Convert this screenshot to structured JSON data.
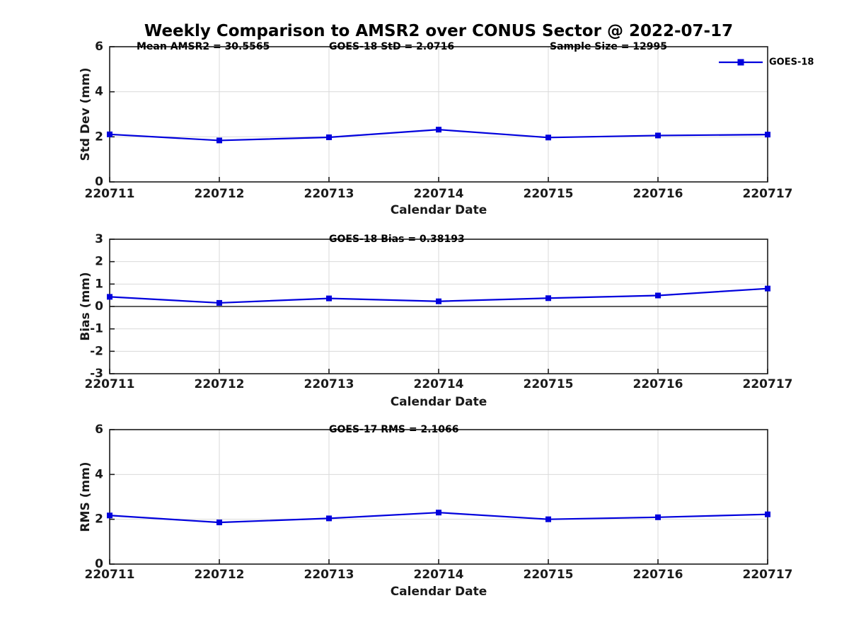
{
  "title": "Weekly Comparison to AMSR2 over CONUS Sector @ 2022-07-17",
  "colors": {
    "line": "#0000dd",
    "grid": "#d9d9d9",
    "axis": "#1a1a1a",
    "tick_text": "#1a1a1a",
    "annotation_text": "#000000",
    "zero_line": "#000000"
  },
  "chart_data": [
    {
      "type": "line",
      "name": "std-dev",
      "title_annotations": [
        "Mean AMSR2 = 30.5565",
        "GOES-18 StD = 2.0716",
        "Sample Size = 12995"
      ],
      "categories": [
        "220711",
        "220712",
        "220713",
        "220714",
        "220715",
        "220716",
        "220717"
      ],
      "series": [
        {
          "name": "GOES-18",
          "values": [
            2.11,
            1.84,
            1.98,
            2.32,
            1.97,
            2.06,
            2.1
          ]
        }
      ],
      "xlabel": "Calendar Date",
      "ylabel": "Std Dev (mm)",
      "ylim": [
        0,
        6
      ],
      "yticks": [
        0,
        2,
        4,
        6
      ],
      "grid": true,
      "zero_line": false,
      "legend": {
        "visible": true,
        "entries": [
          "GOES-18"
        ],
        "position": "top-right"
      }
    },
    {
      "type": "line",
      "name": "bias",
      "title_annotations": [
        "GOES-18 Bias  = 0.38193"
      ],
      "categories": [
        "220711",
        "220712",
        "220713",
        "220714",
        "220715",
        "220716",
        "220717"
      ],
      "series": [
        {
          "name": "GOES-18",
          "values": [
            0.43,
            0.16,
            0.36,
            0.23,
            0.37,
            0.49,
            0.8
          ]
        }
      ],
      "xlabel": "Calendar Date",
      "ylabel": "Bias (mm)",
      "ylim": [
        -3,
        3
      ],
      "yticks": [
        -3,
        -2,
        -1,
        0,
        1,
        2,
        3
      ],
      "grid": true,
      "zero_line": true,
      "legend": {
        "visible": false,
        "entries": [],
        "position": ""
      }
    },
    {
      "type": "line",
      "name": "rms",
      "title_annotations": [
        "GOES-17 RMS = 2.1066"
      ],
      "categories": [
        "220711",
        "220712",
        "220713",
        "220714",
        "220715",
        "220716",
        "220717"
      ],
      "series": [
        {
          "name": "GOES-18",
          "values": [
            2.17,
            1.86,
            2.04,
            2.3,
            2.0,
            2.09,
            2.22
          ]
        }
      ],
      "xlabel": "Calendar Date",
      "ylabel": "RMS (mm)",
      "ylim": [
        0,
        6
      ],
      "yticks": [
        0,
        2,
        4,
        6
      ],
      "grid": true,
      "zero_line": false,
      "legend": {
        "visible": false,
        "entries": [],
        "position": ""
      }
    }
  ]
}
